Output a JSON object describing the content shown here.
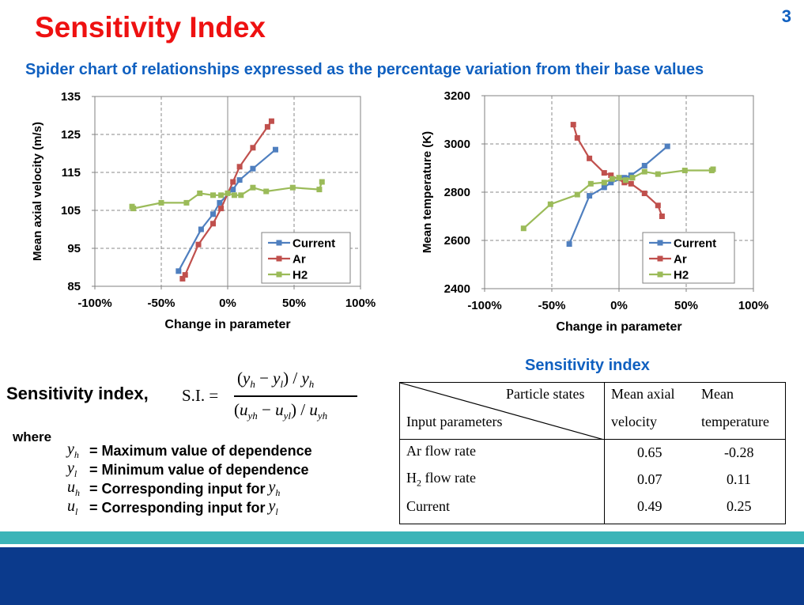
{
  "slide": {
    "title": "Sensitivity Index",
    "page_number": "3",
    "subtitle": "Spider chart of relationships expressed as the percentage variation from their base values"
  },
  "colors": {
    "current": "#4f7fbf",
    "ar": "#c0504d",
    "h2": "#9bbb59",
    "title": "#ee1111",
    "accent": "#1060c0"
  },
  "chart_data": [
    {
      "type": "line",
      "xlabel": "Change in parameter",
      "ylabel": "Mean axial velocity (m/s)",
      "xlim": [
        -100,
        100
      ],
      "ylim": [
        85,
        135
      ],
      "xticks": [
        "-100%",
        "-50%",
        "0%",
        "50%",
        "100%"
      ],
      "yticks": [
        "85",
        "95",
        "105",
        "115",
        "125",
        "135"
      ],
      "legend_position": "bottom-right",
      "grid": true,
      "series": [
        {
          "name": "Current",
          "color": "#4f7fbf",
          "points": [
            [
              -37,
              89
            ],
            [
              -20,
              100
            ],
            [
              -11,
              104
            ],
            [
              -6,
              107
            ],
            [
              4,
              110.5
            ],
            [
              9,
              113
            ],
            [
              19,
              116
            ],
            [
              36,
              121
            ]
          ]
        },
        {
          "name": "Ar",
          "color": "#c0504d",
          "points": [
            [
              -34,
              87
            ],
            [
              -32,
              88
            ],
            [
              -22,
              96
            ],
            [
              -11,
              101.5
            ],
            [
              -5,
              105.5
            ],
            [
              4,
              112.5
            ],
            [
              9,
              116.5
            ],
            [
              19,
              121.5
            ],
            [
              30,
              127
            ],
            [
              33,
              128.5
            ]
          ]
        },
        {
          "name": "H2",
          "color": "#9bbb59",
          "points": [
            [
              -72,
              106
            ],
            [
              -71,
              105.5
            ],
            [
              -50,
              107
            ],
            [
              -31,
              107
            ],
            [
              -21,
              109.5
            ],
            [
              -11,
              109
            ],
            [
              -5,
              109
            ],
            [
              0,
              109.5
            ],
            [
              5,
              109
            ],
            [
              10,
              109
            ],
            [
              19,
              111
            ],
            [
              29,
              110
            ],
            [
              49,
              111
            ],
            [
              69,
              110.5
            ],
            [
              71,
              112.5
            ]
          ]
        }
      ]
    },
    {
      "type": "line",
      "xlabel": "Change in parameter",
      "ylabel": "Mean temperature (K)",
      "xlim": [
        -100,
        100
      ],
      "ylim": [
        2400,
        3200
      ],
      "xticks": [
        "-100%",
        "-50%",
        "0%",
        "50%",
        "100%"
      ],
      "yticks": [
        "2400",
        "2600",
        "2800",
        "3000",
        "3200"
      ],
      "legend_position": "bottom-right",
      "grid": true,
      "series": [
        {
          "name": "Current",
          "color": "#4f7fbf",
          "points": [
            [
              -37,
              2585
            ],
            [
              -22,
              2785
            ],
            [
              -11,
              2820
            ],
            [
              -6,
              2840
            ],
            [
              4,
              2860
            ],
            [
              9,
              2870
            ],
            [
              19,
              2910
            ],
            [
              36,
              2990
            ]
          ]
        },
        {
          "name": "Ar",
          "color": "#c0504d",
          "points": [
            [
              -34,
              3080
            ],
            [
              -31,
              3025
            ],
            [
              -22,
              2940
            ],
            [
              -11,
              2880
            ],
            [
              -6,
              2870
            ],
            [
              4,
              2840
            ],
            [
              9,
              2835
            ],
            [
              19,
              2795
            ],
            [
              29,
              2745
            ],
            [
              32,
              2700
            ]
          ]
        },
        {
          "name": "H2",
          "color": "#9bbb59",
          "points": [
            [
              -71,
              2650
            ],
            [
              -51,
              2750
            ],
            [
              -31,
              2790
            ],
            [
              -21,
              2835
            ],
            [
              -11,
              2840
            ],
            [
              -5,
              2855
            ],
            [
              0,
              2860
            ],
            [
              5,
              2850
            ],
            [
              10,
              2860
            ],
            [
              19,
              2885
            ],
            [
              29,
              2875
            ],
            [
              49,
              2890
            ],
            [
              69,
              2890
            ],
            [
              70,
              2895
            ]
          ]
        }
      ]
    }
  ],
  "formula": {
    "heading": "Sensitivity index,",
    "lhs": "S.I. =",
    "numerator": "(y_h − y_l) / y_h",
    "denominator": "(u_yh − u_yl) / u_yh"
  },
  "definitions": {
    "where_label": "where",
    "items": [
      {
        "symbol": "y_h",
        "text": "= Maximum value of dependence",
        "suffix": ""
      },
      {
        "symbol": "y_l",
        "text": "= Minimum value of dependence",
        "suffix": ""
      },
      {
        "symbol": "u_h",
        "text": "= Corresponding input for",
        "suffix": "y_h"
      },
      {
        "symbol": "u_l",
        "text": "= Corresponding input for",
        "suffix": "y_l"
      }
    ]
  },
  "table": {
    "title": "Sensitivity index",
    "header_top_right": "Particle states",
    "header_bottom_left": "Input parameters",
    "col1": [
      "Mean axial",
      "velocity"
    ],
    "col2": [
      "Mean",
      "temperature"
    ],
    "rows": [
      {
        "label": "Ar flow rate",
        "v1": "0.65",
        "v2": "-0.28"
      },
      {
        "label": "H2 flow rate",
        "v1": "0.07",
        "v2": "0.11"
      },
      {
        "label": "Current",
        "v1": "0.49",
        "v2": "0.25"
      }
    ]
  }
}
